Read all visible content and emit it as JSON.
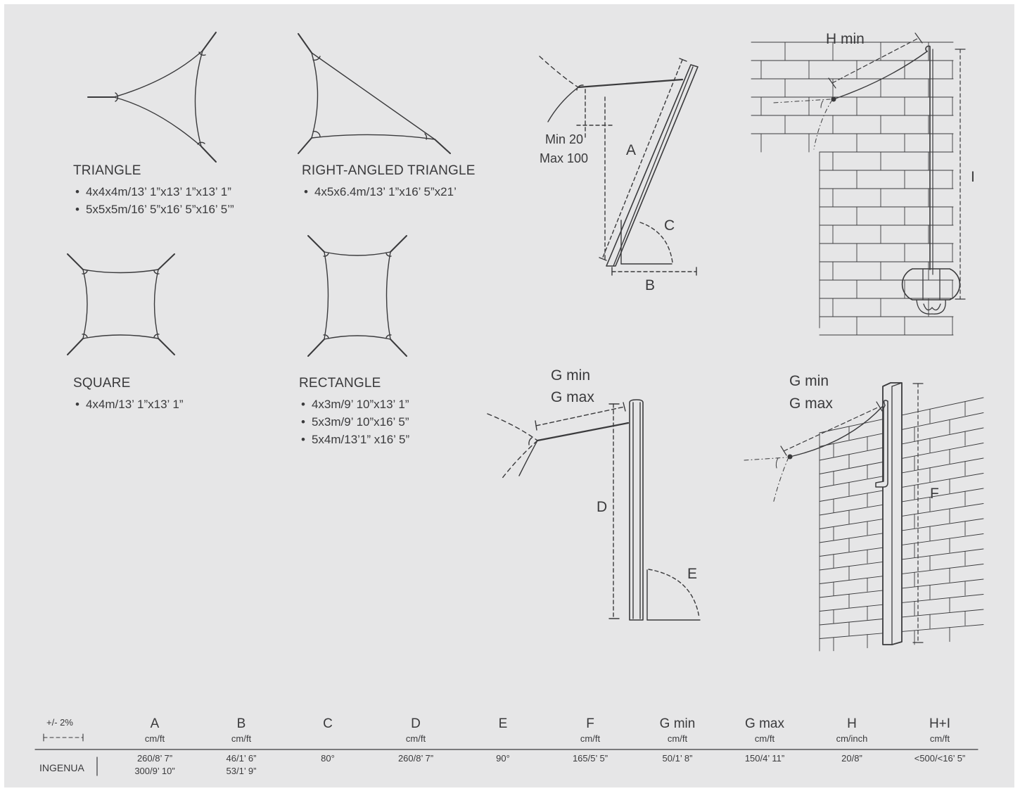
{
  "shapes": {
    "triangle": {
      "title": "TRIANGLE",
      "sizes": [
        "4x4x4m/13’ 1”x13’ 1”x13’ 1”",
        "5x5x5m/16’ 5”x16’ 5”x16’ 5’”"
      ]
    },
    "right_triangle": {
      "title": "RIGHT-ANGLED TRIANGLE",
      "sizes": [
        "4x5x6.4m/13’ 1”x16’ 5”x21’"
      ]
    },
    "square": {
      "title": "SQUARE",
      "sizes": [
        "4x4m/13’ 1”x13’ 1”"
      ]
    },
    "rectangle": {
      "title": "RECTANGLE",
      "sizes": [
        "4x3m/9’ 10”x13’ 1”",
        "5x3m/9’ 10”x16’ 5”",
        "5x4m/13’1” x16’ 5”"
      ]
    }
  },
  "diagram_labels": {
    "min": "Min 20",
    "max": "Max 100",
    "a": "A",
    "b": "B",
    "c": "C",
    "d": "D",
    "e": "E",
    "f": "F",
    "i": "I",
    "h_min": "H min",
    "g_min_left": "G min",
    "g_max_left": "G max",
    "g_min_right": "G min",
    "g_max_right": "G max"
  },
  "table": {
    "tolerance": "+/- 2%",
    "row_label": "INGENUA",
    "columns": [
      {
        "header": "A",
        "unit": "cm/ft",
        "values": [
          "260/8’ 7”",
          "300/9’ 10”"
        ]
      },
      {
        "header": "B",
        "unit": "cm/ft",
        "values": [
          "46/1’ 6”",
          "53/1’ 9”"
        ]
      },
      {
        "header": "C",
        "unit": "",
        "values": [
          "80°"
        ]
      },
      {
        "header": "D",
        "unit": "cm/ft",
        "values": [
          "260/8’ 7”"
        ]
      },
      {
        "header": "E",
        "unit": "",
        "values": [
          "90°"
        ]
      },
      {
        "header": "F",
        "unit": "cm/ft",
        "values": [
          "165/5’ 5”"
        ]
      },
      {
        "header": "G min",
        "unit": "cm/ft",
        "values": [
          "50/1’ 8”"
        ]
      },
      {
        "header": "G max",
        "unit": "cm/ft",
        "values": [
          "150/4’ 11”"
        ]
      },
      {
        "header": "H",
        "unit": "cm/inch",
        "values": [
          "20/8”"
        ]
      },
      {
        "header": "H+I",
        "unit": "cm/ft",
        "values": [
          "<500/<16’ 5”"
        ]
      }
    ]
  },
  "colors": {
    "background": "#e6e6e7",
    "line": "#3a3a3c"
  }
}
